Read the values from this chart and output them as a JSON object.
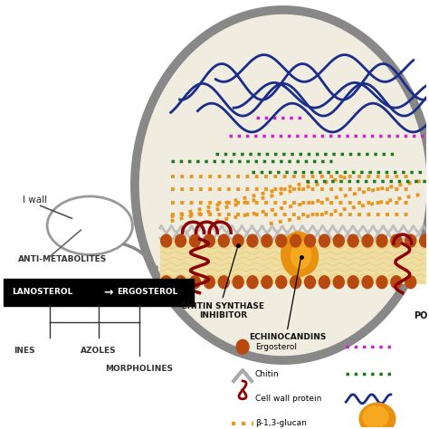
{
  "bg_color": "#ffffff",
  "ergosterol_color": "#b84a10",
  "ergosterol_small_color": "#cc5500",
  "chitin_color": "#c0c0c0",
  "glucan_color": "#e8961e",
  "purple_color": "#cc22cc",
  "green_color": "#1a7a1a",
  "blue_color": "#1a2d8a",
  "dark_red_color": "#8B0000",
  "orange_protein_color": "#e8961e",
  "gray_cell": "#888888",
  "labels": {
    "cell_wall": "l wall",
    "anti_metabolites": "ANTI-METABOLITES",
    "lanosterol": "LANOSTEROL",
    "arrow": "→",
    "ergosterol_label": "ERGOSTEROL",
    "ines": "INES",
    "azoles": "AZOLES",
    "morpholines": "MORPHOLINES",
    "chitin_synthase": "CHITIN SYNTHASE\nINHIBITOR",
    "echinocandins": "ECHINOCANDINS",
    "polyene": "PO",
    "leg_ergosterol": "Ergosterol",
    "leg_chitin": "Chitin",
    "leg_cwp": "Cell wall protein",
    "leg_glucan": "β-1,3-glucan"
  }
}
